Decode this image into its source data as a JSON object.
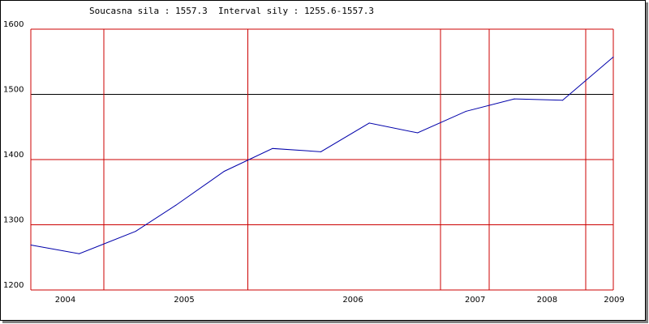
{
  "header": {
    "current_label": "Soucasna sila : ",
    "current_value": "1557.3",
    "interval_label": "Interval sily : ",
    "interval_value": "1255.6-1557.3"
  },
  "chart_data": {
    "type": "line",
    "title": "",
    "xlabel": "",
    "ylabel": "",
    "ylim": [
      1200,
      1600
    ],
    "y_ticks": [
      1200,
      1300,
      1400,
      1500,
      1600
    ],
    "x_ticks": [
      "2004",
      "2005",
      "2006",
      "2007",
      "2008",
      "2009"
    ],
    "x_tick_positions": [
      0.0592,
      0.2632,
      0.553,
      0.7628,
      0.8863,
      1.0
    ],
    "vertical_gridlines": [
      0.1252,
      0.3724,
      0.7036,
      0.7866,
      0.9526
    ],
    "reference_line": 1500,
    "colors": {
      "line": "#0000aa",
      "grid": "#cc0000",
      "reference": "#000000"
    },
    "series": [
      {
        "x": [
          0.0,
          0.083,
          0.18,
          0.249,
          0.332,
          0.415,
          0.498,
          0.581,
          0.664,
          0.747,
          0.83,
          0.913,
          1.0
        ],
        "values": [
          1269,
          1255.6,
          1290,
          1330,
          1382,
          1417,
          1412,
          1456,
          1441,
          1474,
          1493,
          1491,
          1557.3
        ]
      }
    ]
  }
}
